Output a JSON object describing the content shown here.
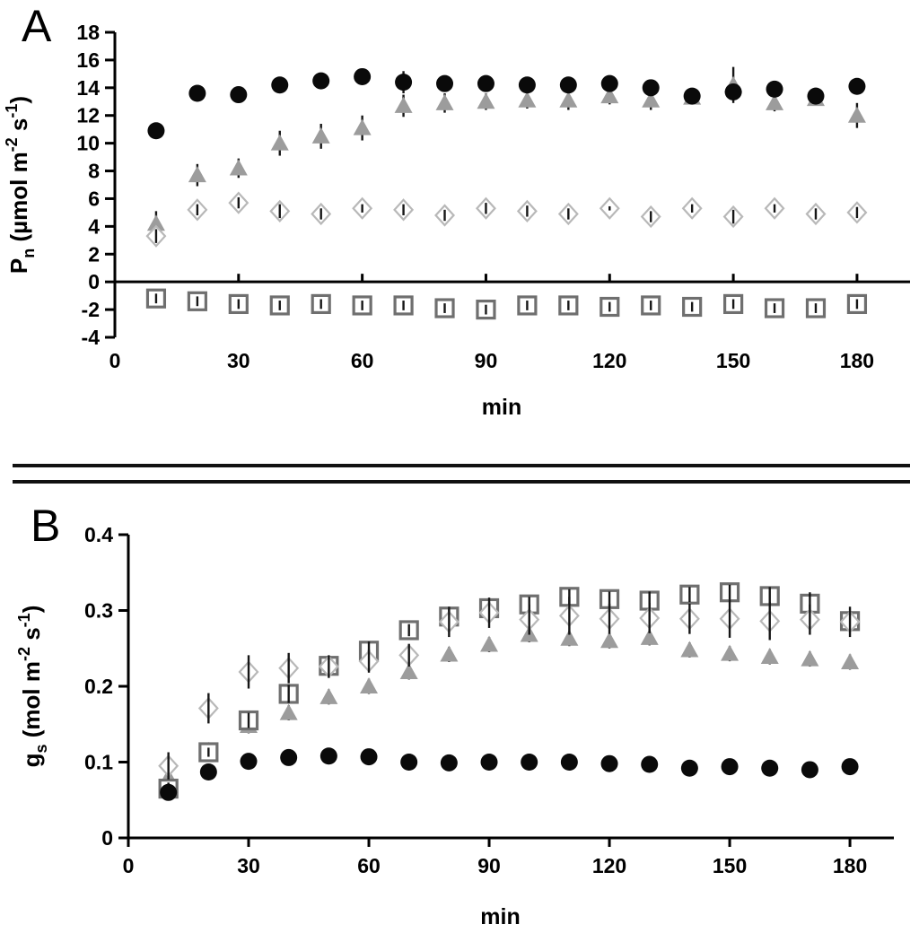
{
  "figure": {
    "background": "#ffffff",
    "text_color": "#000000",
    "separator_color": "#111111"
  },
  "chart_data": [
    {
      "type": "scatter",
      "panel_label": "A",
      "xlabel": "min",
      "ylabel_plain": "Pn (µmol m-2 s-1)",
      "ylabel_segments": [
        {
          "t": "P"
        },
        {
          "t": "n",
          "s": "sub"
        },
        {
          "t": " (µmol m"
        },
        {
          "t": "-2",
          "s": "sup"
        },
        {
          "t": " s"
        },
        {
          "t": "-1",
          "s": "sup"
        },
        {
          "t": ")"
        }
      ],
      "ylim": [
        -4,
        18
      ],
      "xlim": [
        0,
        193
      ],
      "x_axis_at": 0,
      "grid": false,
      "legend": "none",
      "yticks": [
        18,
        16,
        14,
        12,
        10,
        8,
        6,
        4,
        2,
        0,
        -2,
        -4
      ],
      "ytick_labels": [
        "18",
        "16",
        "14",
        "12",
        "10",
        "8",
        "6",
        "4",
        "2",
        "0",
        "-2",
        "-4"
      ],
      "xticks": [
        0,
        30,
        60,
        90,
        120,
        150,
        180
      ],
      "xtick_labels": [
        "0",
        "30",
        "60",
        "90",
        "120",
        "150",
        "180"
      ],
      "tick_mark_at_zero": false,
      "x": [
        10,
        20,
        30,
        40,
        50,
        60,
        70,
        80,
        90,
        100,
        110,
        120,
        130,
        140,
        150,
        160,
        170,
        180
      ],
      "series": [
        {
          "name": "gray-filled-triangle",
          "marker": "triangle",
          "color": "#9c9c9c",
          "values": [
            4.2,
            7.7,
            8.2,
            10.0,
            10.5,
            11.1,
            12.7,
            12.9,
            13.0,
            13.1,
            13.1,
            13.4,
            13.1,
            13.3,
            14.2,
            12.9,
            13.2,
            12.0
          ],
          "errors": [
            0.9,
            0.8,
            0.7,
            0.9,
            0.9,
            0.9,
            0.8,
            0.7,
            0.6,
            0.6,
            0.7,
            0.6,
            0.7,
            0.5,
            1.3,
            0.6,
            0.5,
            0.9
          ]
        },
        {
          "name": "open-square",
          "marker": "square",
          "color": "#6f6f6f",
          "values": [
            -1.2,
            -1.4,
            -1.6,
            -1.7,
            -1.6,
            -1.7,
            -1.7,
            -1.9,
            -2.0,
            -1.7,
            -1.7,
            -1.8,
            -1.7,
            -1.8,
            -1.6,
            -1.9,
            -1.9,
            -1.6
          ],
          "errors": [
            0.35,
            0.35,
            0.35,
            0.35,
            0.35,
            0.35,
            0.35,
            0.35,
            0.35,
            0.35,
            0.35,
            0.35,
            0.35,
            0.35,
            0.35,
            0.35,
            0.35,
            0.35
          ]
        },
        {
          "name": "black-filled-circle",
          "marker": "circle",
          "color": "#0a0a0a",
          "values": [
            10.9,
            13.6,
            13.5,
            14.2,
            14.5,
            14.8,
            14.4,
            14.3,
            14.3,
            14.2,
            14.2,
            14.3,
            14.0,
            13.4,
            13.7,
            13.9,
            13.4,
            14.1
          ],
          "errors": [
            0.5,
            0.4,
            0.4,
            0.4,
            0.4,
            0.5,
            0.8,
            0.5,
            0.6,
            0.5,
            0.6,
            0.5,
            0.5,
            0.4,
            0.5,
            0.4,
            0.6,
            0.5
          ]
        },
        {
          "name": "open-diamond",
          "marker": "diamond",
          "color": "#b8b8b8",
          "values": [
            3.3,
            5.2,
            5.7,
            5.1,
            4.9,
            5.3,
            5.2,
            4.8,
            5.3,
            5.1,
            4.9,
            5.3,
            4.7,
            5.3,
            4.7,
            5.3,
            4.9,
            5.0
          ],
          "errors": [
            0.5,
            0.4,
            0.4,
            0.5,
            0.4,
            0.3,
            0.4,
            0.4,
            0.4,
            0.4,
            0.4,
            0.15,
            0.4,
            0.3,
            0.5,
            0.3,
            0.4,
            0.4
          ]
        }
      ]
    },
    {
      "type": "scatter",
      "panel_label": "B",
      "xlabel": "min",
      "ylabel_plain": "gs (mol m-2 s-1)",
      "ylabel_segments": [
        {
          "t": "g"
        },
        {
          "t": "s",
          "s": "sub"
        },
        {
          "t": " (mol m"
        },
        {
          "t": "-2",
          "s": "sup"
        },
        {
          "t": " s"
        },
        {
          "t": "-1",
          "s": "sup"
        },
        {
          "t": ")"
        }
      ],
      "ylim": [
        0,
        0.4
      ],
      "xlim": [
        0,
        191
      ],
      "x_axis_at": 0,
      "grid": false,
      "legend": "none",
      "yticks": [
        0.4,
        0.3,
        0.2,
        0.1,
        0
      ],
      "ytick_labels": [
        "0.4",
        "0.3",
        "0.2",
        "0.1",
        "0"
      ],
      "xticks": [
        0,
        30,
        60,
        90,
        120,
        150,
        180
      ],
      "xtick_labels": [
        "0",
        "30",
        "60",
        "90",
        "120",
        "150",
        "180"
      ],
      "tick_mark_at_zero": true,
      "x": [
        10,
        20,
        30,
        40,
        50,
        60,
        70,
        80,
        90,
        100,
        110,
        120,
        130,
        140,
        150,
        160,
        170,
        180
      ],
      "series": [
        {
          "name": "gray-filled-triangle",
          "marker": "triangle",
          "color": "#9c9c9c",
          "values": [
            0.08,
            0.115,
            0.148,
            0.165,
            0.186,
            0.2,
            0.219,
            0.242,
            0.255,
            0.268,
            0.263,
            0.26,
            0.264,
            0.248,
            0.243,
            0.239,
            0.236,
            0.232
          ],
          "errors": [
            0.012,
            0.01,
            0.01,
            0.01,
            0.01,
            0.01,
            0.01,
            0.01,
            0.01,
            0.01,
            0.01,
            0.01,
            0.01,
            0.01,
            0.01,
            0.01,
            0.01,
            0.01
          ]
        },
        {
          "name": "open-square",
          "marker": "square",
          "color": "#6f6f6f",
          "values": [
            0.065,
            0.113,
            0.155,
            0.19,
            0.227,
            0.247,
            0.274,
            0.292,
            0.303,
            0.308,
            0.318,
            0.315,
            0.313,
            0.321,
            0.324,
            0.319,
            0.309,
            0.286
          ],
          "errors": [
            0.008,
            0.006,
            0.01,
            0.012,
            0.012,
            0.012,
            0.008,
            0.01,
            0.008,
            0.01,
            0.01,
            0.01,
            0.012,
            0.01,
            0.01,
            0.012,
            0.015,
            0.012
          ]
        },
        {
          "name": "black-filled-circle",
          "marker": "circle",
          "color": "#0a0a0a",
          "values": [
            0.06,
            0.087,
            0.101,
            0.106,
            0.108,
            0.107,
            0.1,
            0.099,
            0.1,
            0.1,
            0.1,
            0.098,
            0.097,
            0.092,
            0.094,
            0.092,
            0.09,
            0.094
          ],
          "errors": [
            0.006,
            0.006,
            0.006,
            0.006,
            0.006,
            0.006,
            0.006,
            0.006,
            0.006,
            0.006,
            0.006,
            0.006,
            0.006,
            0.006,
            0.006,
            0.006,
            0.006,
            0.006
          ]
        },
        {
          "name": "open-diamond",
          "marker": "diamond",
          "color": "#b8b8b8",
          "values": [
            0.095,
            0.171,
            0.219,
            0.224,
            0.226,
            0.233,
            0.241,
            0.285,
            0.297,
            0.288,
            0.293,
            0.289,
            0.29,
            0.289,
            0.289,
            0.286,
            0.288,
            0.285
          ],
          "errors": [
            0.018,
            0.02,
            0.022,
            0.02,
            0.015,
            0.015,
            0.015,
            0.02,
            0.02,
            0.02,
            0.025,
            0.02,
            0.02,
            0.02,
            0.025,
            0.025,
            0.02,
            0.02
          ]
        }
      ]
    }
  ]
}
